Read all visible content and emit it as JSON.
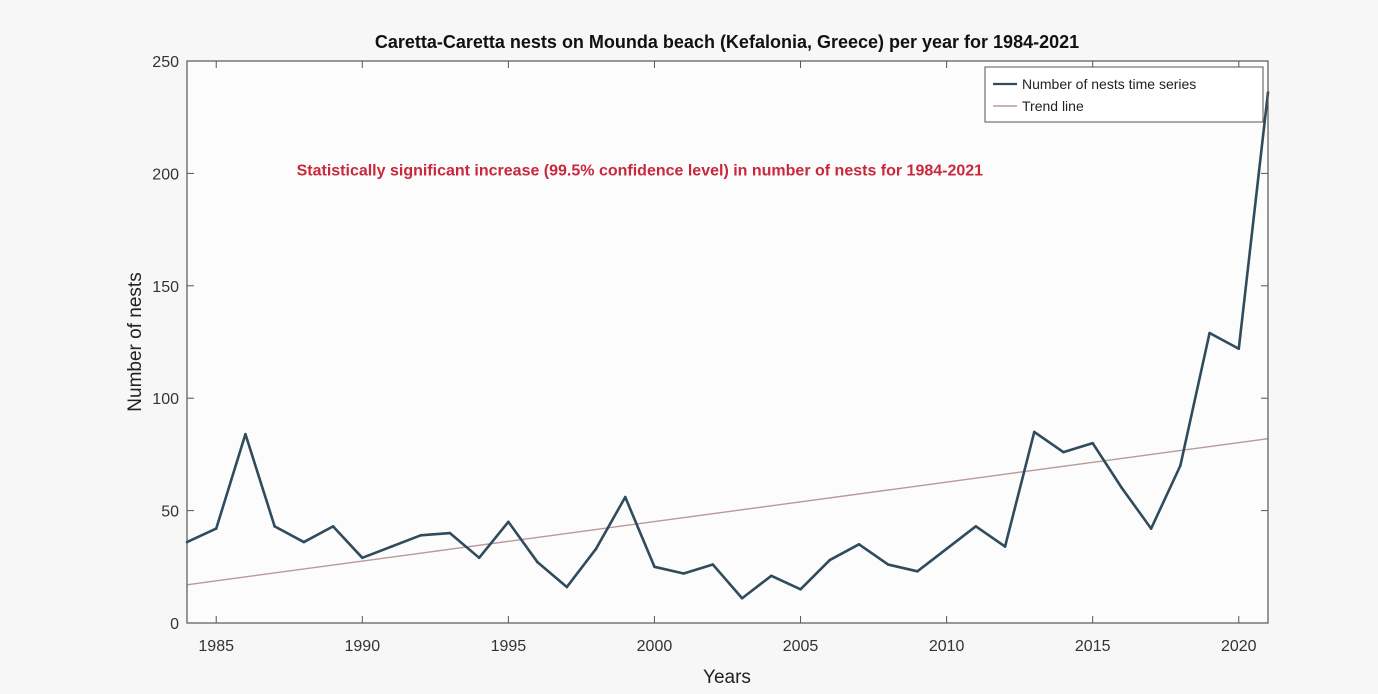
{
  "chart_data": {
    "type": "line",
    "title": "Caretta-Caretta nests on Mounda beach (Kefalonia, Greece) per year for 1984-2021",
    "xlabel": "Years",
    "ylabel": "Number of nests",
    "xlim": [
      1984,
      2021
    ],
    "ylim": [
      0,
      250
    ],
    "xticks": [
      1985,
      1990,
      1995,
      2000,
      2005,
      2010,
      2015,
      2020
    ],
    "yticks": [
      0,
      50,
      100,
      150,
      200,
      250
    ],
    "grid": false,
    "legend_position": "top-right",
    "annotation": {
      "text": "Statistically significant increase (99.5% confidence level) in number of nests for 1984-2021",
      "color": "#c8283c",
      "x": 1999.5,
      "y": 199
    },
    "series": [
      {
        "name": "Number of nests time series",
        "color": "#2f4b5c",
        "x": [
          1984,
          1985,
          1986,
          1987,
          1988,
          1989,
          1990,
          1991,
          1992,
          1993,
          1994,
          1995,
          1996,
          1997,
          1998,
          1999,
          2000,
          2001,
          2002,
          2003,
          2004,
          2005,
          2006,
          2007,
          2008,
          2009,
          2010,
          2011,
          2012,
          2013,
          2014,
          2015,
          2016,
          2017,
          2018,
          2019,
          2020,
          2021
        ],
        "y": [
          36,
          42,
          84,
          43,
          36,
          43,
          29,
          34,
          39,
          40,
          29,
          45,
          27,
          16,
          33,
          56,
          25,
          22,
          26,
          11,
          21,
          15,
          28,
          35,
          26,
          23,
          33,
          43,
          34,
          85,
          76,
          80,
          60,
          42,
          70,
          129,
          122,
          236
        ]
      },
      {
        "name": "Trend line",
        "color": "#b79a9a",
        "x": [
          1984,
          2021
        ],
        "y": [
          17,
          82
        ]
      }
    ]
  }
}
